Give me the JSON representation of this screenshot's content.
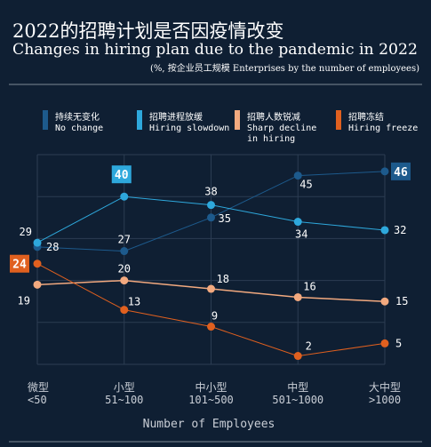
{
  "title_cn": "2022的招聘计划是否因疫情改变",
  "title_en": "Changes in hiring plan due to the pandemic in 2022",
  "subtitle": "(%, 按企业员工规模 Enterprises by the number of employees)",
  "chart_data": {
    "type": "line",
    "categories": [
      "微型\n<50",
      "小型\n51~100",
      "中小型\n101~500",
      "中型\n501~1000",
      "大中型\n>1000"
    ],
    "category_lines": [
      [
        "微型",
        "<50"
      ],
      [
        "小型",
        "51~100"
      ],
      [
        "中小型",
        "101~500"
      ],
      [
        "中型",
        "501~1000"
      ],
      [
        "大中型",
        ">1000"
      ]
    ],
    "xlabel": "Number of Employees",
    "ylabel": "",
    "ylim": [
      0,
      50
    ],
    "grid": true,
    "legend_position": "top",
    "series": [
      {
        "name": "持续无变化 No change",
        "legend_lines": [
          "持续无变化",
          "No change"
        ],
        "color": "#1d5a8c",
        "values": [
          28,
          27,
          35,
          45,
          46
        ]
      },
      {
        "name": "招聘进程放缓 Hiring slowdown",
        "legend_lines": [
          "招聘进程放缓",
          "Hiring slowdown"
        ],
        "color": "#2ea8dc",
        "values": [
          29,
          40,
          38,
          34,
          32
        ]
      },
      {
        "name": "招聘人数锐减 Sharp decline in hiring",
        "legend_lines": [
          "招聘人数锐减",
          "Sharp decline",
          "in hiring"
        ],
        "color": "#f2a97f",
        "values": [
          19,
          20,
          18,
          16,
          15
        ]
      },
      {
        "name": "招聘冻结 Hiring freeze",
        "legend_lines": [
          "招聘冻结",
          "Hiring freeze"
        ],
        "color": "#e0601f",
        "values": [
          24,
          13,
          9,
          2,
          5
        ]
      }
    ]
  }
}
